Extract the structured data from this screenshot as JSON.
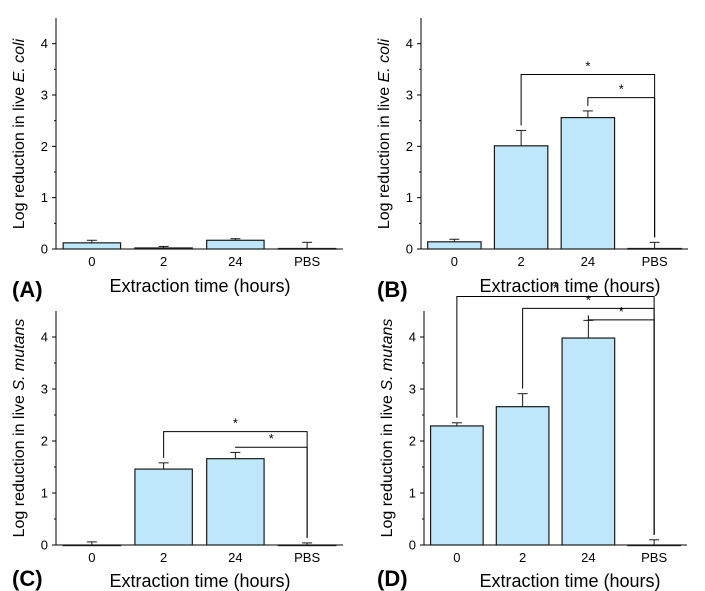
{
  "colors": {
    "bar_fill": "#bfe7fb",
    "bar_stroke": "#1a1a1a",
    "axis": "#000000"
  },
  "chart_data": [
    {
      "type": "bar",
      "panel_label": "(A)",
      "categories": [
        "0",
        "2",
        "24",
        "PBS"
      ],
      "values": [
        0.12,
        0.02,
        0.17,
        0.01
      ],
      "errors": [
        0.05,
        0.03,
        0.03,
        0.12
      ],
      "xlabel": "Extraction time (hours)",
      "ylabel_prefix": "Log reduction in live ",
      "ylabel_species": "E. coli",
      "ylim": [
        0,
        4.5
      ],
      "yticks": [
        "0",
        "1",
        "2",
        "3",
        "4"
      ],
      "significance": []
    },
    {
      "type": "bar",
      "panel_label": "(B)",
      "categories": [
        "0",
        "2",
        "24",
        "PBS"
      ],
      "values": [
        0.14,
        2.01,
        2.56,
        0.01
      ],
      "errors": [
        0.05,
        0.3,
        0.13,
        0.12
      ],
      "xlabel": "Extraction time (hours)",
      "ylabel_prefix": "Log reduction in live ",
      "ylabel_species": "E. coli",
      "ylim": [
        0,
        4.5
      ],
      "yticks": [
        "0",
        "1",
        "2",
        "3",
        "4"
      ],
      "significance": [
        {
          "from": 1,
          "to": 3,
          "level": 3.4,
          "label": "*"
        },
        {
          "from": 2,
          "to": 3,
          "level": 2.95,
          "label": "*"
        }
      ]
    },
    {
      "type": "bar",
      "panel_label": "(C)",
      "categories": [
        "0",
        "2",
        "24",
        "PBS"
      ],
      "values": [
        0.0,
        1.46,
        1.66,
        0.0
      ],
      "errors": [
        0.06,
        0.12,
        0.12,
        0.04
      ],
      "xlabel": "Extraction time (hours)",
      "ylabel_prefix": "Log reduction in live ",
      "ylabel_species": "S. mutans",
      "ylim": [
        0,
        4.5
      ],
      "yticks": [
        "0",
        "1",
        "2",
        "3",
        "4"
      ],
      "significance": [
        {
          "from": 1,
          "to": 3,
          "level": 2.18,
          "label": "*"
        },
        {
          "from": 2,
          "to": 3,
          "level": 1.88,
          "label": "*"
        }
      ]
    },
    {
      "type": "bar",
      "panel_label": "(D)",
      "categories": [
        "0",
        "2",
        "24",
        "PBS"
      ],
      "values": [
        2.29,
        2.66,
        3.98,
        0.0
      ],
      "errors": [
        0.06,
        0.25,
        0.34,
        0.1
      ],
      "xlabel": "Extraction time (hours)",
      "ylabel_prefix": "Log reduction in live ",
      "ylabel_species": "S. mutans",
      "ylim": [
        0,
        4.5
      ],
      "yticks": [
        "0",
        "1",
        "2",
        "3",
        "4"
      ],
      "significance": [
        {
          "from": 0,
          "to": 3,
          "level": 4.78,
          "label": "*"
        },
        {
          "from": 1,
          "to": 3,
          "level": 4.55,
          "label": "*"
        },
        {
          "from": 2,
          "to": 3,
          "level": 4.33,
          "label": "*"
        }
      ]
    }
  ]
}
